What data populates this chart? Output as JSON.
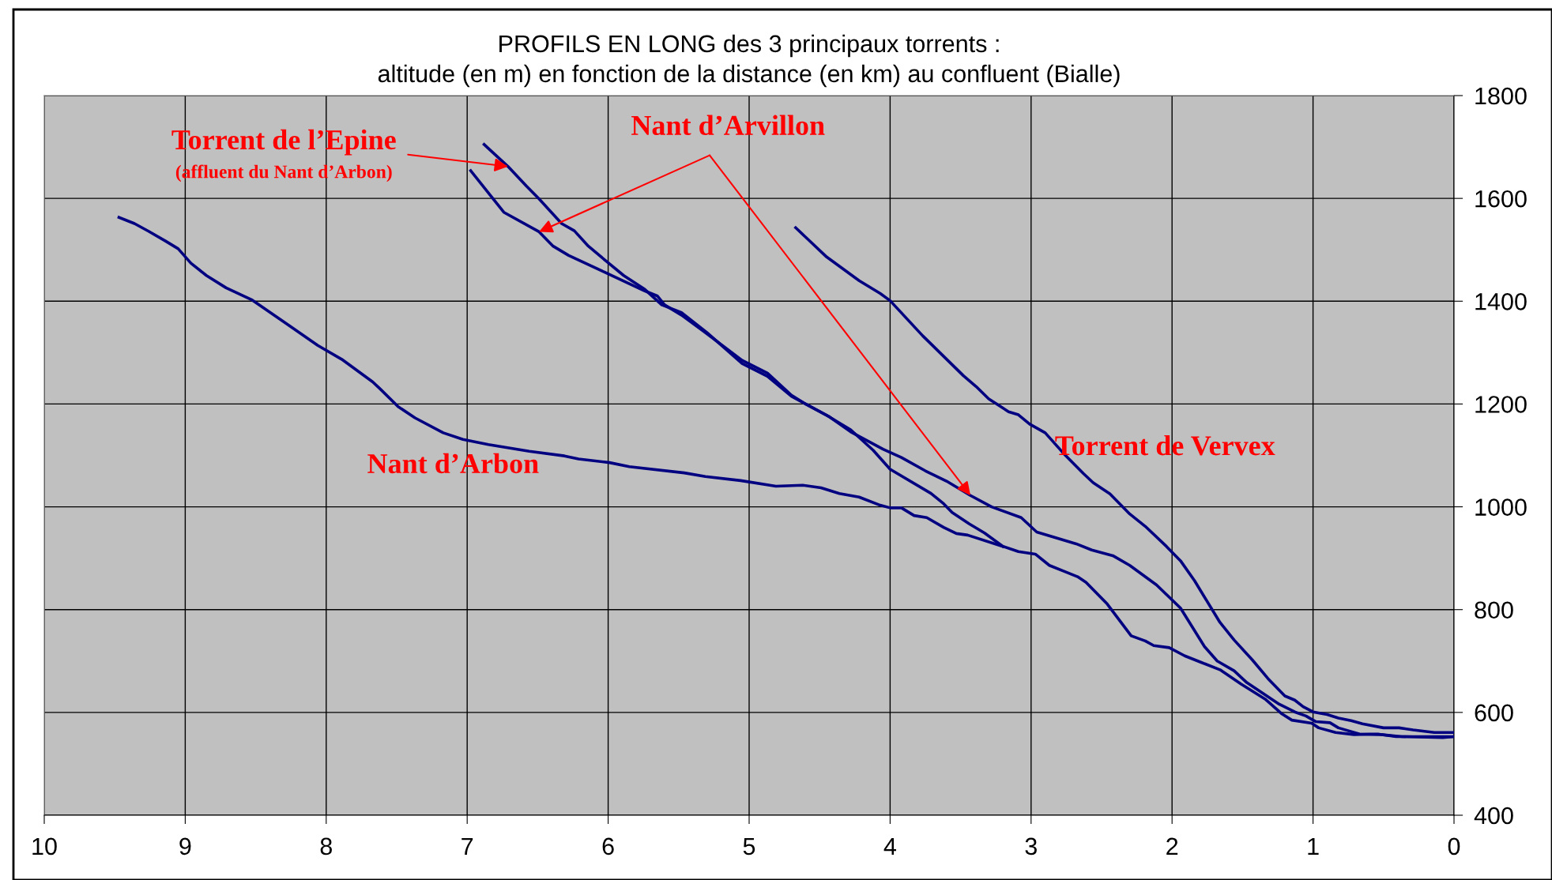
{
  "chart_data": {
    "type": "line",
    "title": "PROFILS EN LONG des 3 principaux torrents :",
    "subtitle": "altitude (en m) en fonction de la distance (en km) au confluent (Bialle)",
    "annotations": [
      {
        "text": "(affluent du Nant d’Arbon)",
        "x": 6.71,
        "y": 1662
      }
    ],
    "xlim": [
      10,
      0
    ],
    "xticks": [
      10,
      9,
      8,
      7,
      6,
      5,
      4,
      3,
      2,
      1,
      0
    ],
    "ylim": [
      400,
      1800
    ],
    "yticks": [
      400,
      600,
      800,
      1000,
      1200,
      1400,
      1600,
      1800
    ],
    "grid": true,
    "marker": "none",
    "line_style": "solid",
    "series": [
      {
        "name": "Nant d’Arbon",
        "color": "#000080",
        "x": [
          9.47,
          9.36,
          9.26,
          9.14,
          9.05,
          8.96,
          8.85,
          8.71,
          8.53,
          8.28,
          8.06,
          7.89,
          7.67,
          7.62,
          7.49,
          7.37,
          7.17,
          7.03,
          6.85,
          6.56,
          6.31,
          6.21,
          5.99,
          5.85,
          5.46,
          5.31,
          5.06,
          4.81,
          4.62,
          4.49,
          4.36,
          4.22,
          4.07,
          4.0,
          3.92,
          3.83,
          3.74,
          3.62,
          3.53,
          3.45,
          3.2,
          3.09,
          2.97,
          2.87,
          2.76,
          2.67,
          2.61,
          2.46,
          2.29,
          2.19,
          2.13,
          2.02,
          1.91,
          1.79,
          1.66,
          1.51,
          1.34,
          1.22,
          1.15,
          1.01,
          0.96,
          0.84,
          0.71,
          0.54,
          0.41,
          0
        ],
        "values": [
          1563,
          1551,
          1536,
          1517,
          1502,
          1474,
          1450,
          1426,
          1403,
          1356,
          1314,
          1287,
          1243,
          1230,
          1195,
          1173,
          1144,
          1131,
          1121,
          1108,
          1099,
          1093,
          1086,
          1078,
          1066,
          1059,
          1051,
          1040,
          1042,
          1037,
          1026,
          1019,
          1003,
          998,
          998,
          983,
          979,
          960,
          948,
          945,
          923,
          913,
          908,
          886,
          874,
          864,
          853,
          811,
          749,
          739,
          730,
          726,
          710,
          697,
          683,
          655,
          626,
          597,
          585,
          579,
          570,
          561,
          557,
          558,
          553,
          553
        ]
      },
      {
        "name": "Torrent de l’Epine",
        "color": "#000080",
        "x": [
          6.88,
          6.71,
          6.58,
          6.49,
          6.33,
          6.24,
          6.14,
          6.01,
          5.89,
          5.74,
          5.62,
          5.48,
          5.3,
          5.05,
          4.87,
          4.7,
          4.45,
          4.28,
          4.12,
          4.0,
          3.71,
          3.62,
          3.56,
          3.44,
          3.33,
          3.2
        ],
        "values": [
          1705,
          1662,
          1624,
          1599,
          1551,
          1537,
          1507,
          1477,
          1450,
          1423,
          1393,
          1378,
          1339,
          1279,
          1254,
          1215,
          1178,
          1150,
          1110,
          1073,
          1026,
          1006,
          989,
          967,
          949,
          923
        ]
      },
      {
        "name": "Nant d’Arvillon",
        "color": "#000080",
        "x": [
          6.975,
          6.74,
          6.49,
          6.39,
          6.28,
          6.03,
          5.74,
          5.65,
          5.6,
          5.48,
          5.32,
          5.05,
          4.87,
          4.7,
          4.6,
          4.43,
          4.28,
          4.05,
          3.92,
          3.75,
          3.6,
          3.43,
          3.28,
          3.07,
          2.96,
          2.68,
          2.57,
          2.42,
          2.3,
          2.11,
          1.94,
          1.77,
          1.68,
          1.56,
          1.47,
          1.24,
          1.13,
          1.05,
          0.98,
          0.88,
          0.82,
          0.67,
          0.52,
          0.37,
          0.08,
          0
        ],
        "values": [
          1654,
          1573,
          1535,
          1507,
          1489,
          1457,
          1420,
          1410,
          1393,
          1373,
          1341,
          1285,
          1260,
          1217,
          1200,
          1175,
          1146,
          1112,
          1096,
          1070,
          1050,
          1022,
          1000,
          979,
          951,
          928,
          916,
          905,
          886,
          848,
          803,
          728,
          700,
          681,
          658,
          616,
          601,
          593,
          582,
          580,
          570,
          558,
          557,
          553,
          551,
          553
        ]
      },
      {
        "name": "Torrent de Vervex",
        "color": "#000080",
        "x": [
          4.67,
          4.45,
          4.22,
          4.07,
          4.0,
          3.77,
          3.48,
          3.39,
          3.3,
          3.16,
          3.09,
          3.01,
          2.9,
          2.77,
          2.63,
          2.56,
          2.44,
          2.3,
          2.19,
          2.04,
          1.94,
          1.84,
          1.66,
          1.56,
          1.43,
          1.32,
          1.2,
          1.13,
          1.07,
          1.0,
          0.9,
          0.82,
          0.73,
          0.65,
          0.5,
          0.39,
          0.29,
          0.14,
          0
        ],
        "values": [
          1543,
          1486,
          1440,
          1415,
          1401,
          1333,
          1255,
          1234,
          1210,
          1185,
          1179,
          1161,
          1144,
          1104,
          1065,
          1047,
          1025,
          986,
          962,
          923,
          895,
          856,
          775,
          741,
          702,
          666,
          632,
          624,
          611,
          601,
          596,
          589,
          584,
          578,
          570,
          570,
          566,
          561,
          561
        ]
      }
    ]
  }
}
